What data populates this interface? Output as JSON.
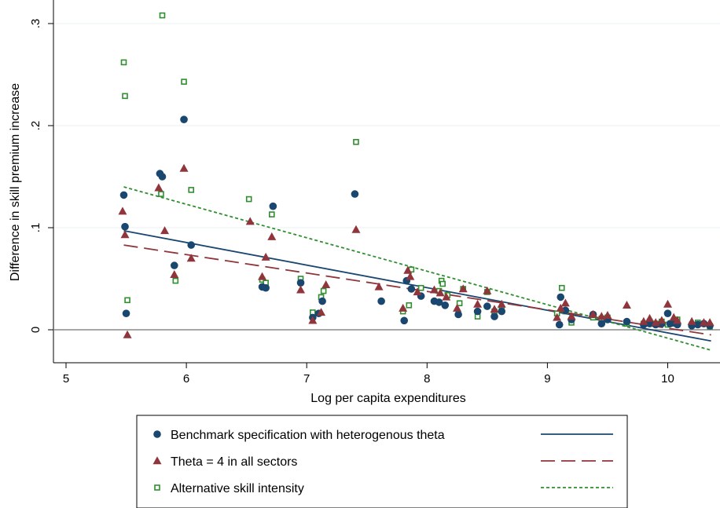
{
  "chart_data": {
    "type": "scatter",
    "xlabel": "Log per capita expenditures",
    "ylabel": "Difference in skill premium increase",
    "xlim": [
      5,
      10.4
    ],
    "ylim": [
      -0.033,
      0.32
    ],
    "x_ticks": [
      5,
      6,
      7,
      8,
      9,
      10
    ],
    "x_tick_labels": [
      "5",
      "6",
      "7",
      "8",
      "9",
      "10"
    ],
    "y_ticks": [
      0,
      0.1,
      0.2,
      0.3
    ],
    "y_tick_labels": [
      "0",
      ".1",
      ".2",
      ".3"
    ],
    "grid": true,
    "legend_position": "bottom",
    "reference_line_y": 0,
    "series": [
      {
        "name": "Benchmark specification with heterogenous theta",
        "marker": "circle",
        "color": "#1a476f",
        "points": [
          [
            5.48,
            0.132
          ],
          [
            5.49,
            0.101
          ],
          [
            5.5,
            0.016
          ],
          [
            5.78,
            0.153
          ],
          [
            5.8,
            0.15
          ],
          [
            5.9,
            0.063
          ],
          [
            5.98,
            0.206
          ],
          [
            6.04,
            0.083
          ],
          [
            6.63,
            0.042
          ],
          [
            6.66,
            0.041
          ],
          [
            6.72,
            0.121
          ],
          [
            6.95,
            0.046
          ],
          [
            7.05,
            0.012
          ],
          [
            7.1,
            0.016
          ],
          [
            7.13,
            0.028
          ],
          [
            7.4,
            0.133
          ],
          [
            7.62,
            0.028
          ],
          [
            7.81,
            0.009
          ],
          [
            7.83,
            0.048
          ],
          [
            7.87,
            0.04
          ],
          [
            7.95,
            0.033
          ],
          [
            8.06,
            0.028
          ],
          [
            8.1,
            0.027
          ],
          [
            8.15,
            0.024
          ],
          [
            8.26,
            0.015
          ],
          [
            8.42,
            0.018
          ],
          [
            8.5,
            0.023
          ],
          [
            8.56,
            0.013
          ],
          [
            8.62,
            0.018
          ],
          [
            9.1,
            0.005
          ],
          [
            9.11,
            0.032
          ],
          [
            9.15,
            0.019
          ],
          [
            9.2,
            0.01
          ],
          [
            9.38,
            0.015
          ],
          [
            9.45,
            0.006
          ],
          [
            9.5,
            0.01
          ],
          [
            9.66,
            0.008
          ],
          [
            9.8,
            0.005
          ],
          [
            9.85,
            0.006
          ],
          [
            9.9,
            0.005
          ],
          [
            9.95,
            0.006
          ],
          [
            10.0,
            0.016
          ],
          [
            10.02,
            0.006
          ],
          [
            10.05,
            0.007
          ],
          [
            10.08,
            0.005
          ],
          [
            10.2,
            0.004
          ],
          [
            10.25,
            0.005
          ],
          [
            10.3,
            0.006
          ],
          [
            10.35,
            0.004
          ]
        ]
      },
      {
        "name": "Theta = 4 in all sectors",
        "marker": "triangle",
        "color": "#90353b",
        "points": [
          [
            5.47,
            0.116
          ],
          [
            5.49,
            0.093
          ],
          [
            5.51,
            -0.005
          ],
          [
            5.77,
            0.139
          ],
          [
            5.82,
            0.097
          ],
          [
            5.9,
            0.054
          ],
          [
            5.98,
            0.158
          ],
          [
            6.04,
            0.07
          ],
          [
            6.53,
            0.106
          ],
          [
            6.63,
            0.052
          ],
          [
            6.66,
            0.071
          ],
          [
            6.71,
            0.091
          ],
          [
            6.95,
            0.039
          ],
          [
            7.05,
            0.009
          ],
          [
            7.12,
            0.017
          ],
          [
            7.16,
            0.044
          ],
          [
            7.41,
            0.098
          ],
          [
            7.6,
            0.042
          ],
          [
            7.8,
            0.021
          ],
          [
            7.84,
            0.058
          ],
          [
            7.86,
            0.052
          ],
          [
            7.92,
            0.037
          ],
          [
            8.06,
            0.039
          ],
          [
            8.11,
            0.036
          ],
          [
            8.16,
            0.032
          ],
          [
            8.25,
            0.021
          ],
          [
            8.3,
            0.04
          ],
          [
            8.42,
            0.025
          ],
          [
            8.5,
            0.038
          ],
          [
            8.56,
            0.02
          ],
          [
            8.62,
            0.025
          ],
          [
            9.08,
            0.012
          ],
          [
            9.11,
            0.021
          ],
          [
            9.15,
            0.026
          ],
          [
            9.2,
            0.013
          ],
          [
            9.38,
            0.015
          ],
          [
            9.45,
            0.013
          ],
          [
            9.5,
            0.014
          ],
          [
            9.66,
            0.024
          ],
          [
            9.8,
            0.008
          ],
          [
            9.85,
            0.011
          ],
          [
            9.9,
            0.007
          ],
          [
            9.95,
            0.009
          ],
          [
            10.0,
            0.025
          ],
          [
            10.05,
            0.012
          ],
          [
            10.08,
            0.009
          ],
          [
            10.2,
            0.008
          ],
          [
            10.3,
            0.007
          ],
          [
            10.35,
            0.007
          ]
        ]
      },
      {
        "name": "Alternative skill intensity",
        "marker": "square",
        "color": "#2f8f2f",
        "points": [
          [
            5.48,
            0.262
          ],
          [
            5.49,
            0.229
          ],
          [
            5.51,
            0.029
          ],
          [
            5.79,
            0.133
          ],
          [
            5.8,
            0.308
          ],
          [
            5.91,
            0.048
          ],
          [
            5.98,
            0.243
          ],
          [
            6.04,
            0.137
          ],
          [
            6.52,
            0.128
          ],
          [
            6.63,
            0.049
          ],
          [
            6.66,
            0.046
          ],
          [
            6.71,
            0.113
          ],
          [
            6.95,
            0.05
          ],
          [
            7.05,
            0.017
          ],
          [
            7.12,
            0.032
          ],
          [
            7.14,
            0.038
          ],
          [
            7.41,
            0.184
          ],
          [
            7.8,
            0.018
          ],
          [
            7.85,
            0.024
          ],
          [
            7.87,
            0.059
          ],
          [
            7.95,
            0.041
          ],
          [
            8.1,
            0.038
          ],
          [
            8.12,
            0.048
          ],
          [
            8.13,
            0.045
          ],
          [
            8.17,
            0.034
          ],
          [
            8.27,
            0.026
          ],
          [
            8.3,
            0.04
          ],
          [
            8.42,
            0.013
          ],
          [
            8.5,
            0.037
          ],
          [
            8.56,
            0.018
          ],
          [
            8.62,
            0.02
          ],
          [
            9.08,
            0.016
          ],
          [
            9.12,
            0.041
          ],
          [
            9.15,
            0.018
          ],
          [
            9.2,
            0.007
          ],
          [
            9.38,
            0.012
          ],
          [
            9.45,
            0.011
          ],
          [
            9.5,
            0.012
          ],
          [
            9.66,
            0.006
          ],
          [
            9.8,
            0.006
          ],
          [
            9.85,
            0.008
          ],
          [
            9.9,
            0.006
          ],
          [
            9.95,
            0.008
          ],
          [
            10.0,
            0.005
          ],
          [
            10.05,
            0.006
          ],
          [
            10.08,
            0.01
          ],
          [
            10.2,
            0.005
          ],
          [
            10.25,
            0.007
          ],
          [
            10.35,
            0.003
          ]
        ]
      }
    ],
    "fit_lines": [
      {
        "series": "Benchmark specification with heterogenous theta",
        "style": "solid",
        "color": "#1a476f",
        "x": [
          5.48,
          10.36
        ],
        "y": [
          0.097,
          -0.011
        ]
      },
      {
        "series": "Theta = 4 in all sectors",
        "style": "long-dash",
        "color": "#90353b",
        "x": [
          5.48,
          10.36
        ],
        "y": [
          0.083,
          -0.005
        ]
      },
      {
        "series": "Alternative skill intensity",
        "style": "short-dash",
        "color": "#2f8f2f",
        "x": [
          5.48,
          10.36
        ],
        "y": [
          0.14,
          -0.02
        ]
      }
    ]
  }
}
